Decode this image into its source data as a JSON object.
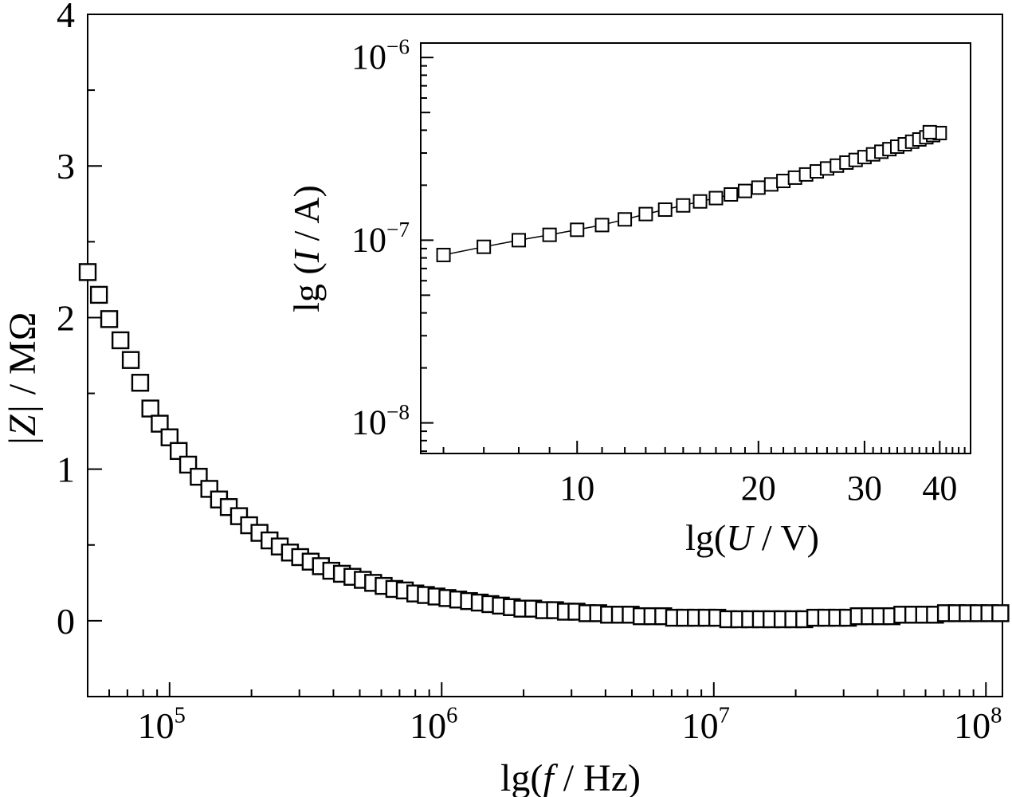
{
  "chart_data": [
    {
      "type": "scatter",
      "xscale": "log",
      "xlabel": {
        "prefix": "lg(",
        "var": "f",
        "suffix": " / Hz)"
      },
      "ylabel": {
        "main": "|Z|",
        "unit": " / MΩ"
      },
      "xlim": [
        50000,
        115000000
      ],
      "ylim": [
        -0.5,
        4
      ],
      "xticks": [
        {
          "value": 100000,
          "base": "10",
          "exp": "5"
        },
        {
          "value": 1000000,
          "base": "10",
          "exp": "6"
        },
        {
          "value": 10000000,
          "base": "10",
          "exp": "7"
        },
        {
          "value": 100000000,
          "base": "10",
          "exp": "8"
        }
      ],
      "yticks": [
        {
          "value": 0,
          "label": "0"
        },
        {
          "value": 1,
          "label": "1"
        },
        {
          "value": 2,
          "label": "2"
        },
        {
          "value": 3,
          "label": "3"
        },
        {
          "value": 4,
          "label": "4"
        }
      ],
      "yminor": [
        -0.5,
        0.5,
        1.5,
        2.5,
        3.5
      ],
      "marker": "open-square",
      "points": [
        [
          50000,
          2.3
        ],
        [
          55000,
          2.15
        ],
        [
          60000,
          1.99
        ],
        [
          66000,
          1.85
        ],
        [
          72000,
          1.72
        ],
        [
          78000,
          1.57
        ],
        [
          85000,
          1.4
        ],
        [
          92000,
          1.3
        ],
        [
          100000,
          1.21
        ],
        [
          108000,
          1.12
        ],
        [
          117000,
          1.03
        ],
        [
          128000,
          0.95
        ],
        [
          140000,
          0.87
        ],
        [
          152000,
          0.8
        ],
        [
          165000,
          0.75
        ],
        [
          180000,
          0.69
        ],
        [
          196000,
          0.63
        ],
        [
          214000,
          0.58
        ],
        [
          233000,
          0.53
        ],
        [
          254000,
          0.49
        ],
        [
          277000,
          0.45
        ],
        [
          302000,
          0.42
        ],
        [
          330000,
          0.39
        ],
        [
          360000,
          0.36
        ],
        [
          393000,
          0.33
        ],
        [
          430000,
          0.31
        ],
        [
          470000,
          0.29
        ],
        [
          513000,
          0.27
        ],
        [
          560000,
          0.25
        ],
        [
          612000,
          0.23
        ],
        [
          670000,
          0.21
        ],
        [
          732000,
          0.2
        ],
        [
          800000,
          0.18
        ],
        [
          875000,
          0.17
        ],
        [
          957000,
          0.16
        ],
        [
          1050000,
          0.15
        ],
        [
          1150000,
          0.14
        ],
        [
          1260000,
          0.13
        ],
        [
          1380000,
          0.12
        ],
        [
          1510000,
          0.11
        ],
        [
          1650000,
          0.1
        ],
        [
          1810000,
          0.09
        ],
        [
          1980000,
          0.08
        ],
        [
          2170000,
          0.08
        ],
        [
          2380000,
          0.07
        ],
        [
          2610000,
          0.07
        ],
        [
          2860000,
          0.06
        ],
        [
          3130000,
          0.06
        ],
        [
          3430000,
          0.05
        ],
        [
          3760000,
          0.05
        ],
        [
          4120000,
          0.04
        ],
        [
          4520000,
          0.04
        ],
        [
          4950000,
          0.04
        ],
        [
          5430000,
          0.03
        ],
        [
          5950000,
          0.03
        ],
        [
          6520000,
          0.03
        ],
        [
          7150000,
          0.02
        ],
        [
          7840000,
          0.02
        ],
        [
          8590000,
          0.02
        ],
        [
          9420000,
          0.02
        ],
        [
          10300000,
          0.02
        ],
        [
          11300000,
          0.01
        ],
        [
          12400000,
          0.01
        ],
        [
          13600000,
          0.01
        ],
        [
          14900000,
          0.01
        ],
        [
          16300000,
          0.01
        ],
        [
          17900000,
          0.01
        ],
        [
          19600000,
          0.01
        ],
        [
          21500000,
          0.01
        ],
        [
          23600000,
          0.02
        ],
        [
          25900000,
          0.02
        ],
        [
          28400000,
          0.02
        ],
        [
          31100000,
          0.02
        ],
        [
          34100000,
          0.03
        ],
        [
          37400000,
          0.03
        ],
        [
          41000000,
          0.03
        ],
        [
          45000000,
          0.03
        ],
        [
          49300000,
          0.04
        ],
        [
          54100000,
          0.04
        ],
        [
          59300000,
          0.04
        ],
        [
          65000000,
          0.04
        ],
        [
          71300000,
          0.05
        ],
        [
          78200000,
          0.05
        ],
        [
          85700000,
          0.05
        ],
        [
          94000000,
          0.05
        ],
        [
          103000000,
          0.05
        ],
        [
          113000000,
          0.05
        ]
      ]
    },
    {
      "type": "line",
      "inset": true,
      "xscale": "log",
      "yscale": "log",
      "xlabel": {
        "prefix": "lg(",
        "var": "U",
        "suffix": " / V)"
      },
      "ylabel": {
        "prefix": "lg (",
        "var": "I",
        "suffix": " / A)"
      },
      "xlim": [
        5.5,
        45
      ],
      "ylim": [
        6.8e-09,
        1.2e-06
      ],
      "xticks": [
        {
          "value": 10,
          "label": "10"
        },
        {
          "value": 20,
          "label": "20"
        },
        {
          "value": 30,
          "label": "30"
        },
        {
          "value": 40,
          "label": "40"
        }
      ],
      "yticks": [
        {
          "value": 1e-08,
          "base": "10",
          "exp": "−8"
        },
        {
          "value": 1e-07,
          "base": "10",
          "exp": "−7"
        },
        {
          "value": 1e-06,
          "base": "10",
          "exp": "−6"
        }
      ],
      "marker": "open-square",
      "points": [
        [
          6.0,
          8.3e-08
        ],
        [
          7.0,
          9.2e-08
        ],
        [
          8.0,
          1e-07
        ],
        [
          9.0,
          1.07e-07
        ],
        [
          10.0,
          1.14e-07
        ],
        [
          11.0,
          1.21e-07
        ],
        [
          12.0,
          1.3e-07
        ],
        [
          13.0,
          1.39e-07
        ],
        [
          14.0,
          1.47e-07
        ],
        [
          15.0,
          1.55e-07
        ],
        [
          16.0,
          1.63e-07
        ],
        [
          17.0,
          1.7e-07
        ],
        [
          18.0,
          1.78e-07
        ],
        [
          19.0,
          1.86e-07
        ],
        [
          20.0,
          1.94e-07
        ],
        [
          21.0,
          2.02e-07
        ],
        [
          22.0,
          2.11e-07
        ],
        [
          23.0,
          2.2e-07
        ],
        [
          24.0,
          2.29e-07
        ],
        [
          25.0,
          2.38e-07
        ],
        [
          26.0,
          2.47e-07
        ],
        [
          27.0,
          2.56e-07
        ],
        [
          28.0,
          2.66e-07
        ],
        [
          29.0,
          2.75e-07
        ],
        [
          30.0,
          2.85e-07
        ],
        [
          31.0,
          2.95e-07
        ],
        [
          32.0,
          3.05e-07
        ],
        [
          33.0,
          3.15e-07
        ],
        [
          34.0,
          3.25e-07
        ],
        [
          35.0,
          3.35e-07
        ],
        [
          36.0,
          3.46e-07
        ],
        [
          37.0,
          3.56e-07
        ],
        [
          38.0,
          3.66e-07
        ],
        [
          39.0,
          3.76e-07
        ],
        [
          40.0,
          3.86e-07
        ],
        [
          38.5,
          3.9e-07
        ]
      ]
    }
  ]
}
